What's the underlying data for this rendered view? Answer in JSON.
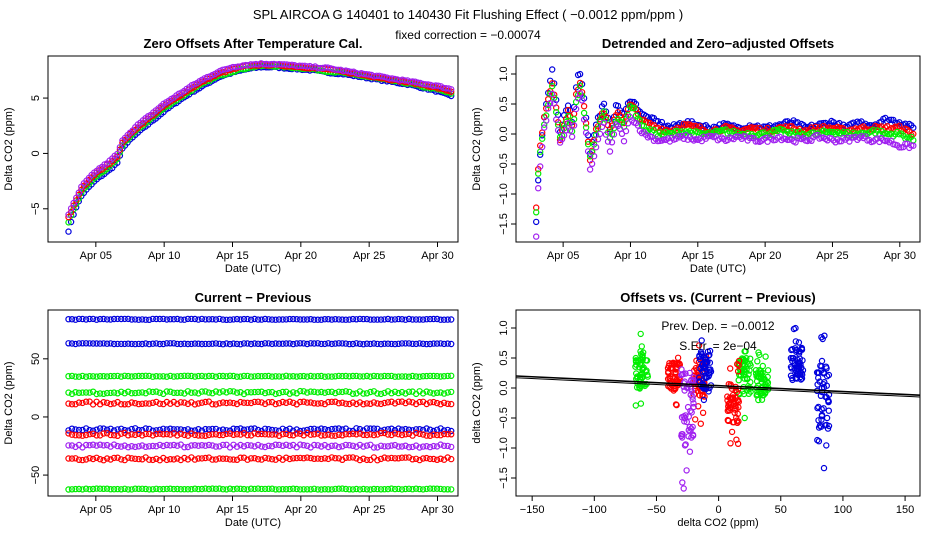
{
  "header": {
    "title": "SPL   AIRCOA G   140401 to 140430   Fit Flushing Effect ( −0.0012 ppm/ppm )",
    "subtitle": "fixed correction = −0.00074"
  },
  "colors": {
    "red": "#ff0000",
    "green": "#00ee00",
    "blue": "#0000dd",
    "purple": "#a020f0",
    "black": "#000000"
  },
  "chart_data": [
    {
      "id": "zero_offsets",
      "type": "scatter",
      "title": "Zero Offsets After Temperature Cal.",
      "xlabel": "Date (UTC)",
      "ylabel": "Delta CO2 (ppm)",
      "xlim": [
        1.5,
        31.5
      ],
      "ylim": [
        -8.0,
        8.8
      ],
      "xticks": [
        {
          "v": 5,
          "label": "Apr 05"
        },
        {
          "v": 10,
          "label": "Apr 10"
        },
        {
          "v": 15,
          "label": "Apr 15"
        },
        {
          "v": 20,
          "label": "Apr 20"
        },
        {
          "v": 25,
          "label": "Apr 25"
        },
        {
          "v": 30,
          "label": "Apr 30"
        }
      ],
      "yticks": [
        {
          "v": -5,
          "label": "−5"
        },
        {
          "v": 0,
          "label": "0"
        },
        {
          "v": 5,
          "label": "5"
        }
      ],
      "series": [
        {
          "name": "blue",
          "color": "blue",
          "x": [
            3.0,
            3.5,
            4,
            5,
            6,
            6.6,
            7,
            8,
            9,
            10,
            11,
            12,
            13,
            14,
            15,
            16,
            17,
            18,
            19,
            20,
            21,
            22,
            23,
            24,
            25,
            26,
            27,
            28,
            29,
            30,
            31
          ],
          "y": [
            -7.0,
            -5.0,
            -3.7,
            -2.4,
            -1.5,
            -0.8,
            0.6,
            1.8,
            2.8,
            3.8,
            4.7,
            5.5,
            6.2,
            6.9,
            7.3,
            7.6,
            7.8,
            7.8,
            7.7,
            7.6,
            7.5,
            7.3,
            7.2,
            7.0,
            6.8,
            6.6,
            6.4,
            6.2,
            5.9,
            5.6,
            5.2
          ]
        },
        {
          "name": "green",
          "color": "green",
          "x": [
            3.0,
            3.5,
            4,
            5,
            6,
            6.6,
            7,
            8,
            9,
            10,
            11,
            12,
            13,
            14,
            15,
            16,
            17,
            18,
            19,
            20,
            21,
            22,
            23,
            24,
            25,
            26,
            27,
            28,
            29,
            30,
            31
          ],
          "y": [
            -6.2,
            -4.7,
            -3.4,
            -2.1,
            -1.2,
            -0.5,
            0.9,
            2.1,
            3.1,
            4.1,
            4.9,
            5.7,
            6.4,
            7.0,
            7.4,
            7.7,
            7.9,
            7.9,
            7.8,
            7.7,
            7.6,
            7.4,
            7.3,
            7.1,
            6.9,
            6.7,
            6.5,
            6.3,
            6.0,
            5.8,
            5.4
          ]
        },
        {
          "name": "red",
          "color": "red",
          "x": [
            3.0,
            3.5,
            4,
            5,
            6,
            6.6,
            7,
            8,
            9,
            10,
            11,
            12,
            13,
            14,
            15,
            16,
            17,
            18,
            19,
            20,
            21,
            22,
            23,
            24,
            25,
            26,
            27,
            28,
            29,
            30,
            31
          ],
          "y": [
            -5.8,
            -4.4,
            -3.1,
            -1.8,
            -0.9,
            -0.2,
            1.1,
            2.3,
            3.3,
            4.3,
            5.1,
            5.9,
            6.6,
            7.2,
            7.6,
            7.9,
            8.0,
            8.0,
            7.9,
            7.8,
            7.7,
            7.6,
            7.4,
            7.2,
            7.0,
            6.8,
            6.6,
            6.4,
            6.2,
            5.9,
            5.6
          ]
        },
        {
          "name": "purple",
          "color": "purple",
          "x": [
            3.0,
            3.5,
            4,
            5,
            6,
            6.6,
            7,
            8,
            9,
            10,
            11,
            12,
            13,
            14,
            15,
            16,
            17,
            18,
            19,
            20,
            21,
            22,
            23,
            24,
            25,
            26,
            27,
            28,
            29,
            30,
            31
          ],
          "y": [
            -5.5,
            -4.2,
            -2.9,
            -1.6,
            -0.7,
            0.0,
            1.3,
            2.5,
            3.5,
            4.5,
            5.3,
            6.1,
            6.8,
            7.4,
            7.8,
            8.0,
            8.1,
            8.1,
            8.0,
            7.9,
            7.8,
            7.7,
            7.5,
            7.3,
            7.1,
            6.9,
            6.7,
            6.5,
            6.3,
            6.1,
            5.8
          ]
        }
      ]
    },
    {
      "id": "detrended",
      "type": "scatter",
      "title": "Detrended and Zero−adjusted Offsets",
      "xlabel": "Date (UTC)",
      "ylabel": "Delta CO2 (ppm)",
      "xlim": [
        1.5,
        31.5
      ],
      "ylim": [
        -1.8,
        1.3
      ],
      "xticks": [
        {
          "v": 5,
          "label": "Apr 05"
        },
        {
          "v": 10,
          "label": "Apr 10"
        },
        {
          "v": 15,
          "label": "Apr 15"
        },
        {
          "v": 20,
          "label": "Apr 20"
        },
        {
          "v": 25,
          "label": "Apr 25"
        },
        {
          "v": 30,
          "label": "Apr 30"
        }
      ],
      "yticks": [
        {
          "v": -1.5,
          "label": "−1.5"
        },
        {
          "v": -1.0,
          "label": "−1.0"
        },
        {
          "v": -0.5,
          "label": "−0.5"
        },
        {
          "v": 0.0,
          "label": "0.0"
        },
        {
          "v": 0.5,
          "label": "0.5"
        },
        {
          "v": 1.0,
          "label": "1.0"
        }
      ],
      "series": [
        {
          "name": "blue",
          "color": "blue",
          "x": [
            3.0,
            3.1,
            3.3,
            3.6,
            3.9,
            4.2,
            4.5,
            4.8,
            5.1,
            5.4,
            5.7,
            6.0,
            6.3,
            6.6,
            7.0,
            7.5,
            8.0,
            8.5,
            9.0,
            9.5,
            10.0,
            11,
            12,
            13,
            14,
            15,
            16,
            17,
            18,
            19,
            20,
            21,
            22,
            23,
            24,
            25,
            26,
            27,
            28,
            29,
            30,
            31
          ],
          "y": [
            -1.45,
            -0.9,
            -0.3,
            0.3,
            0.7,
            1.1,
            0.5,
            0.0,
            0.3,
            0.5,
            0.2,
            0.9,
            1.05,
            0.5,
            -0.3,
            0.2,
            0.5,
            0.1,
            0.5,
            0.3,
            0.6,
            0.3,
            0.2,
            0.1,
            0.2,
            0.15,
            0.1,
            0.15,
            0.1,
            0.15,
            0.1,
            0.15,
            0.2,
            0.1,
            0.15,
            0.2,
            0.1,
            0.2,
            0.15,
            0.25,
            0.2,
            0.1
          ]
        },
        {
          "name": "red",
          "color": "red",
          "x": [
            3.0,
            3.1,
            3.3,
            3.6,
            3.9,
            4.2,
            4.5,
            4.8,
            5.1,
            5.4,
            5.7,
            6.0,
            6.3,
            6.6,
            7.0,
            7.5,
            8.0,
            8.5,
            9.0,
            9.5,
            10.0,
            11,
            12,
            13,
            14,
            15,
            16,
            17,
            18,
            19,
            20,
            21,
            22,
            23,
            24,
            25,
            26,
            27,
            28,
            29,
            30,
            31
          ],
          "y": [
            -1.2,
            -0.7,
            -0.2,
            0.3,
            0.6,
            0.9,
            0.4,
            -0.1,
            0.2,
            0.4,
            0.1,
            0.7,
            0.9,
            0.4,
            -0.4,
            0.1,
            0.4,
            0.0,
            0.4,
            0.2,
            0.5,
            0.2,
            0.1,
            0.05,
            0.15,
            0.1,
            0.05,
            0.1,
            0.05,
            0.1,
            0.05,
            0.1,
            0.1,
            0.05,
            0.1,
            0.1,
            0.05,
            0.1,
            0.1,
            0.1,
            0.1,
            0.0
          ]
        },
        {
          "name": "green",
          "color": "green",
          "x": [
            3.0,
            3.1,
            3.3,
            3.6,
            3.9,
            4.2,
            4.5,
            4.8,
            5.1,
            5.4,
            5.7,
            6.0,
            6.3,
            6.6,
            7.0,
            7.5,
            8.0,
            8.5,
            9.0,
            9.5,
            10.0,
            11,
            12,
            13,
            14,
            15,
            16,
            17,
            18,
            19,
            20,
            21,
            22,
            23,
            24,
            25,
            26,
            27,
            28,
            29,
            30,
            31
          ],
          "y": [
            -1.3,
            -0.8,
            -0.3,
            0.2,
            0.5,
            0.8,
            0.3,
            -0.1,
            0.1,
            0.3,
            0.0,
            0.6,
            0.8,
            0.3,
            -0.4,
            0.0,
            0.4,
            -0.1,
            0.3,
            0.1,
            0.5,
            0.1,
            0.0,
            0.0,
            0.05,
            0.0,
            0.0,
            0.05,
            0.0,
            0.0,
            0.0,
            0.05,
            0.0,
            0.0,
            0.0,
            0.05,
            0.0,
            0.0,
            0.05,
            0.0,
            0.0,
            -0.1
          ]
        },
        {
          "name": "purple",
          "color": "purple",
          "x": [
            3.0,
            3.1,
            3.3,
            3.6,
            3.9,
            4.2,
            4.5,
            4.8,
            5.1,
            5.4,
            5.7,
            6.0,
            6.3,
            6.6,
            7.0,
            7.5,
            8.0,
            8.5,
            9.0,
            9.5,
            10.0,
            11,
            12,
            13,
            14,
            15,
            16,
            17,
            18,
            19,
            20,
            21,
            22,
            23,
            24,
            25,
            26,
            27,
            28,
            29,
            30,
            31
          ],
          "y": [
            -1.7,
            -1.0,
            -0.5,
            0.1,
            0.4,
            0.7,
            0.2,
            -0.2,
            0.0,
            0.2,
            -0.1,
            0.5,
            0.7,
            0.2,
            -0.6,
            -0.2,
            0.2,
            -0.3,
            0.2,
            -0.1,
            0.3,
            0.0,
            -0.1,
            -0.1,
            -0.05,
            -0.1,
            -0.05,
            -0.1,
            -0.05,
            -0.1,
            -0.1,
            -0.05,
            -0.1,
            -0.1,
            -0.05,
            -0.1,
            -0.1,
            -0.05,
            -0.1,
            -0.1,
            -0.2,
            -0.2
          ]
        }
      ]
    },
    {
      "id": "current_previous",
      "type": "scatter",
      "title": "Current − Previous",
      "xlabel": "Date (UTC)",
      "ylabel": "Delta CO2 (ppm)",
      "xlim": [
        1.5,
        31.5
      ],
      "ylim": [
        -68,
        92
      ],
      "xticks": [
        {
          "v": 5,
          "label": "Apr 05"
        },
        {
          "v": 10,
          "label": "Apr 10"
        },
        {
          "v": 15,
          "label": "Apr 15"
        },
        {
          "v": 20,
          "label": "Apr 20"
        },
        {
          "v": 25,
          "label": "Apr 25"
        },
        {
          "v": 30,
          "label": "Apr 30"
        }
      ],
      "yticks": [
        {
          "v": -50,
          "label": "−50"
        },
        {
          "v": 0,
          "label": "0"
        },
        {
          "v": 50,
          "label": "50"
        }
      ],
      "series": [
        {
          "name": "blue",
          "color": "blue",
          "x_range": [
            3,
            31
          ],
          "levels": [
            84,
            63,
            -11
          ]
        },
        {
          "name": "green",
          "color": "green",
          "x_range": [
            3,
            31
          ],
          "levels": [
            35,
            21,
            -62
          ]
        },
        {
          "name": "red",
          "color": "red",
          "x_range": [
            3,
            31
          ],
          "levels": [
            12,
            -15,
            -36
          ]
        },
        {
          "name": "purple",
          "color": "purple",
          "x_range": [
            3,
            31
          ],
          "levels": [
            -25
          ]
        }
      ]
    },
    {
      "id": "offsets_vs",
      "type": "scatter",
      "title": "Offsets vs. (Current − Previous)",
      "xlabel": "delta CO2 (ppm)",
      "ylabel": "delta CO2 (ppm)",
      "xlim": [
        -163,
        162
      ],
      "ylim": [
        -1.8,
        1.3
      ],
      "xticks": [
        {
          "v": -150,
          "label": "−150"
        },
        {
          "v": -100,
          "label": "−100"
        },
        {
          "v": -50,
          "label": "−50"
        },
        {
          "v": 0,
          "label": "0"
        },
        {
          "v": 50,
          "label": "50"
        },
        {
          "v": 100,
          "label": "100"
        },
        {
          "v": 150,
          "label": "150"
        }
      ],
      "yticks": [
        {
          "v": -1.5,
          "label": "−1.5"
        },
        {
          "v": -1.0,
          "label": "−1.0"
        },
        {
          "v": -0.5,
          "label": "−0.5"
        },
        {
          "v": 0.0,
          "label": "0.0"
        },
        {
          "v": 0.5,
          "label": "0.5"
        },
        {
          "v": 1.0,
          "label": "1.0"
        }
      ],
      "annotations": [
        "Prev. Dep. = −0.0012",
        "S.Err. = 2e−04"
      ],
      "fit_line": {
        "x": [
          -163,
          162
        ],
        "y": [
          0.2,
          -0.12
        ]
      },
      "series": [
        {
          "name": "green",
          "color": "green",
          "clusters": [
            {
              "x": -62,
              "ymin": -0.4,
              "ymax": 1.0
            },
            {
              "x": 21,
              "ymin": -0.5,
              "ymax": 0.9
            },
            {
              "x": 35,
              "ymin": -0.4,
              "ymax": 0.6
            }
          ]
        },
        {
          "name": "red",
          "color": "red",
          "clusters": [
            {
              "x": -36,
              "ymin": -0.3,
              "ymax": 0.7
            },
            {
              "x": -15,
              "ymin": -0.6,
              "ymax": 0.9
            },
            {
              "x": 12,
              "ymin": -1.0,
              "ymax": 0.5
            }
          ]
        },
        {
          "name": "purple",
          "color": "purple",
          "clusters": [
            {
              "x": -25,
              "ymin": -1.7,
              "ymax": 1.0
            }
          ]
        },
        {
          "name": "blue",
          "color": "blue",
          "clusters": [
            {
              "x": -11,
              "ymin": -0.4,
              "ymax": 1.0
            },
            {
              "x": 63,
              "ymin": -0.2,
              "ymax": 1.0
            },
            {
              "x": 84,
              "ymin": -1.45,
              "ymax": 1.1
            }
          ]
        }
      ]
    }
  ]
}
